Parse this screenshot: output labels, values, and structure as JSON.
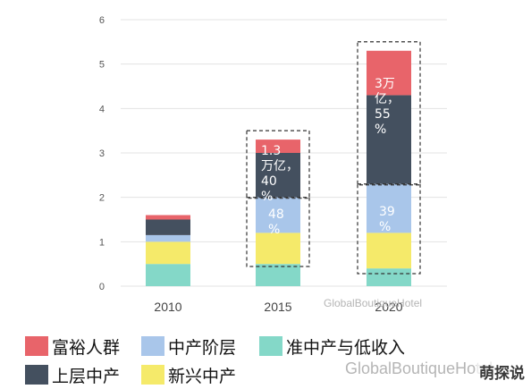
{
  "chart_data": {
    "type": "bar",
    "stacked": true,
    "categories": [
      "2010",
      "2015",
      "2020"
    ],
    "series": [
      {
        "name": "准中产与低收入",
        "color": "#84d8c8",
        "values": [
          0.5,
          0.5,
          0.4
        ]
      },
      {
        "name": "新兴中产",
        "color": "#f5ea6a",
        "values": [
          0.5,
          0.7,
          0.8
        ]
      },
      {
        "name": "中产阶层",
        "color": "#a9c6ea",
        "values": [
          0.15,
          0.8,
          1.1
        ]
      },
      {
        "name": "上层中产",
        "color": "#44505f",
        "values": [
          0.35,
          1.0,
          2.0
        ]
      },
      {
        "name": "富裕人群",
        "color": "#e8646a",
        "values": [
          0.1,
          0.3,
          1.0
        ]
      }
    ],
    "ylim": [
      0,
      6
    ],
    "yticks": [
      "0",
      "1",
      "2",
      "3",
      "4",
      "5",
      "6"
    ],
    "grid": true,
    "legend_position": "bottom",
    "annotations": [
      {
        "category": "2015",
        "lines": [
          "1.3",
          "万亿，",
          "40",
          "%"
        ]
      },
      {
        "category": "2015",
        "lines": [
          "48",
          "%"
        ]
      },
      {
        "category": "2020",
        "lines": [
          "3万",
          "亿，",
          "55",
          "%"
        ]
      },
      {
        "category": "2020",
        "lines": [
          "39",
          "%"
        ]
      }
    ]
  },
  "legend": [
    {
      "label": "富裕人群",
      "color": "#e8646a"
    },
    {
      "label": "中产阶层",
      "color": "#a9c6ea"
    },
    {
      "label": "准中产与低收入",
      "color": "#84d8c8"
    },
    {
      "label": "上层中产",
      "color": "#44505f"
    },
    {
      "label": "新兴中产",
      "color": "#f5ea6a"
    }
  ],
  "watermarks": {
    "small": "GlobalBoutiqueHotel",
    "large": "GlobalBoutiqueHotel"
  },
  "badge": "萌探说"
}
